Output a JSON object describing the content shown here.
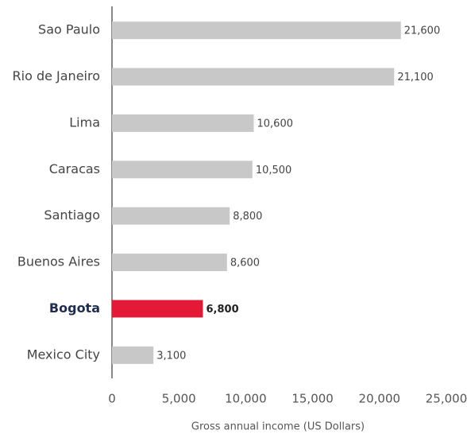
{
  "chart_data": {
    "type": "bar",
    "orientation": "horizontal",
    "x_label": "Gross annual income (US Dollars)",
    "categories": [
      "Sao Paulo",
      "Rio de Janeiro",
      "Lima",
      "Caracas",
      "Santiago",
      "Buenos Aires",
      "Bogota",
      "Mexico City"
    ],
    "values": [
      21600,
      21100,
      10600,
      10500,
      8800,
      8600,
      6800,
      3100
    ],
    "value_labels": [
      "21,600",
      "21,100",
      "10,600",
      "10,500",
      "8,800",
      "8,600",
      "6,800",
      "3,100"
    ],
    "colors": [
      "#c8c8c8",
      "#c8c8c8",
      "#c8c8c8",
      "#c8c8c8",
      "#c8c8c8",
      "#c8c8c8",
      "#e31937",
      "#c8c8c8"
    ],
    "highlight": "Bogota",
    "xlim": [
      0,
      25000
    ],
    "xticks": [
      0,
      {
        "value": 5000,
        "label": "5,000"
      },
      {
        "value": 10000,
        "label": "10,000"
      },
      {
        "value": 15000,
        "label": "15,000"
      },
      {
        "value": 20000,
        "label": "20,000"
      },
      {
        "value": 25000,
        "label": "25,000"
      }
    ]
  }
}
